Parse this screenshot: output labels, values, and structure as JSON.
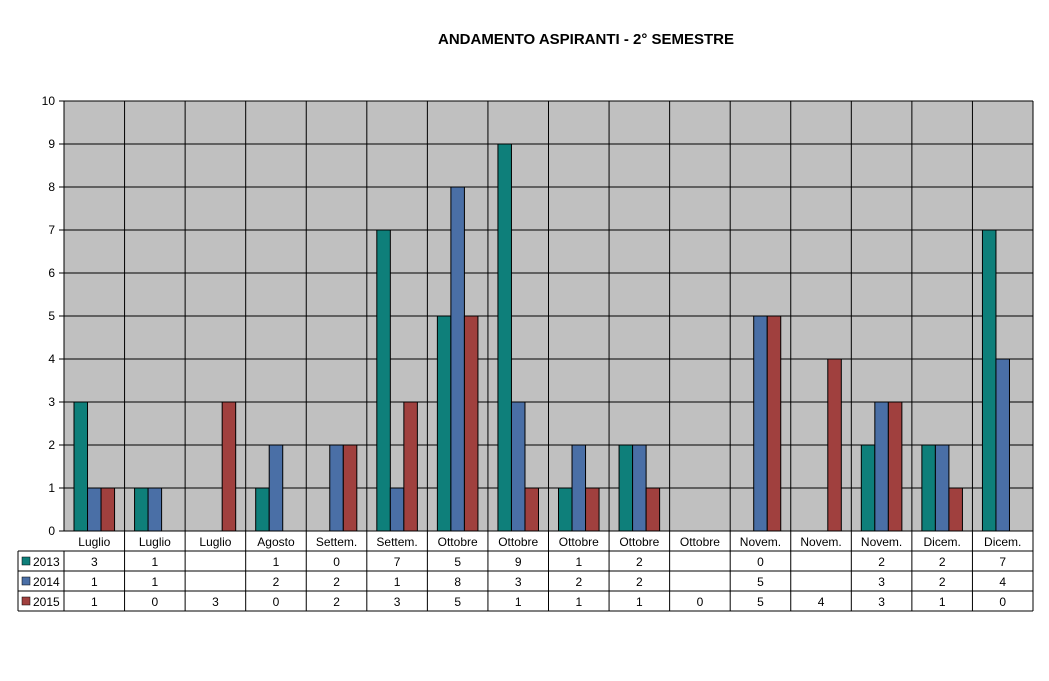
{
  "chart_data": {
    "type": "bar",
    "title": "ANDAMENTO ASPIRANTI  - 2° SEMESTRE",
    "xlabel": "",
    "ylabel": "",
    "ylim": [
      0,
      10
    ],
    "yticks": [
      "0",
      "1",
      "2",
      "3",
      "4",
      "5",
      "6",
      "7",
      "8",
      "9",
      "10"
    ],
    "grid": true,
    "plot_background": "#c0c0c0",
    "legend": "data table below the chart",
    "categories": [
      "Luglio",
      "Luglio",
      "Luglio",
      "Agosto",
      "Settem.",
      "Settem.",
      "Ottobre",
      "Ottobre",
      "Ottobre",
      "Ottobre",
      "Ottobre",
      "Novem.",
      "Novem.",
      "Novem.",
      "Dicem.",
      "Dicem."
    ],
    "series": [
      {
        "name": "2013",
        "color": "#0e7f7a",
        "values": [
          3,
          1,
          null,
          1,
          0,
          7,
          5,
          9,
          1,
          2,
          null,
          0,
          null,
          2,
          2,
          7
        ],
        "labels": [
          "3",
          "1",
          "",
          "1",
          "0",
          "7",
          "5",
          "9",
          "1",
          "2",
          "",
          "0",
          "",
          "2",
          "2",
          "7"
        ]
      },
      {
        "name": "2014",
        "color": "#4a6fa6",
        "values": [
          1,
          1,
          null,
          2,
          2,
          1,
          8,
          3,
          2,
          2,
          null,
          5,
          null,
          3,
          2,
          4
        ],
        "labels": [
          "1",
          "1",
          "",
          "2",
          "2",
          "1",
          "8",
          "3",
          "2",
          "2",
          "",
          "5",
          "",
          "3",
          "2",
          "4"
        ]
      },
      {
        "name": "2015",
        "color": "#a0403e",
        "values": [
          1,
          0,
          3,
          0,
          2,
          3,
          5,
          1,
          1,
          1,
          0,
          5,
          4,
          3,
          1,
          0
        ],
        "labels": [
          "1",
          "0",
          "3",
          "0",
          "2",
          "3",
          "5",
          "1",
          "1",
          "1",
          "0",
          "5",
          "4",
          "3",
          "1",
          "0"
        ]
      }
    ]
  }
}
